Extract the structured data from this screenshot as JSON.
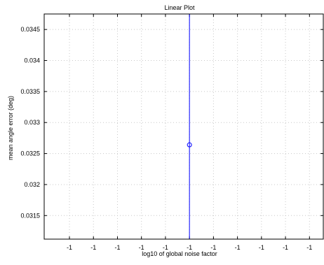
{
  "chart_data": {
    "type": "line",
    "title": "Linear Plot",
    "xlabel": "log10 of global noise factor",
    "ylabel": "mean angle error (deg)",
    "x_tick_labels": [
      "-1",
      "-1",
      "-1",
      "-1",
      "-1",
      "-1",
      "-1",
      "-1",
      "-1",
      "-1",
      "-1"
    ],
    "y_ticks": [
      0.0315,
      0.032,
      0.0325,
      0.033,
      0.0335,
      0.034,
      0.0345
    ],
    "y_tick_labels": [
      "0.0315",
      "0.032",
      "0.0325",
      "0.033",
      "0.0335",
      "0.034",
      "0.0345"
    ],
    "ylim": [
      0.03112,
      0.03475
    ],
    "grid": true,
    "series": [
      {
        "x": [
          -1
        ],
        "y": [
          0.03264
        ],
        "color": "#0000ff",
        "marker": "circle",
        "vertical_line": true
      }
    ]
  }
}
